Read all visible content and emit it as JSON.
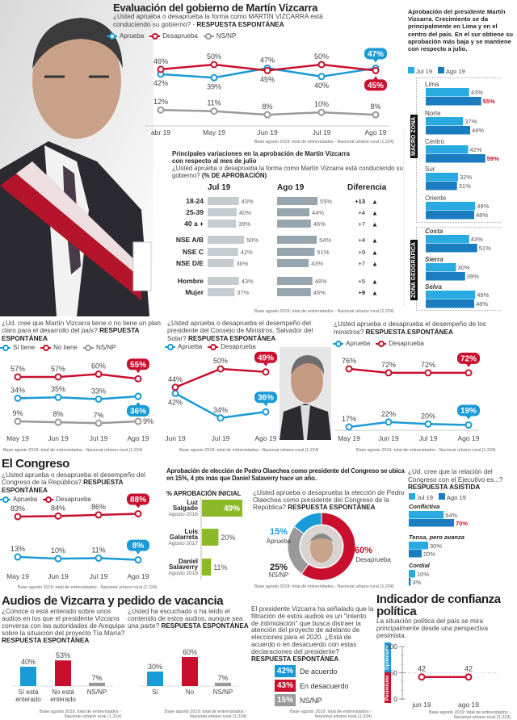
{
  "main": {
    "title": "Evaluación del gobierno de Martín Vizcarra",
    "question": "¿Usted aprueba o desaprueba la forma como MARTÍN VIZCARRA está conduciendo su gobierno? -",
    "question_bold": "RESPUESTA ESPONTÁNEA",
    "legend": [
      "Aprueba",
      "Desaprueba",
      "NS/NP"
    ],
    "base_note": "Base agosto 2019: total de entrevistados - Nacional urbano rural (1.224)"
  },
  "right_panel": {
    "text": "Aprobación del presidente Martín Vizcarra. Crecimiento se da principalmente en Lima y en el centro del país. En el sur obtiene su aprobación más baja y se mantiene con respecto a julio.",
    "legend": [
      "Jul 19",
      "Ago 19"
    ],
    "macro_label": "MACRO ZONA",
    "geo_label": "ZONA GEOGRÁFICA"
  },
  "variations": {
    "title": "Principales variaciones en la aprobación de Martín Vizcarra con respecto al mes de julio",
    "question": "¿Usted aprueba o desaprueba la forma como Martín Vizcarra está conduciendo su gobierno?",
    "question_bold": "(% DE APROBACIÓN)",
    "headers": [
      "Jul 19",
      "Ago 19",
      "Diferencia"
    ],
    "base_note": "Base agosto 2019: total de entrevistados - Nacional urbano rural (1.224)"
  },
  "plan": {
    "question": "¿Ud. cree que Martín Vizcarra tiene o no tiene un plan claro para el desarrollo del país?",
    "question_bold": "RESPUESTA ESPONTÁNEA",
    "legend": [
      "Sí tiene",
      "No tiene",
      "NS/NP"
    ],
    "base_note": "Base agosto 2019: total de entrevistados - Nacional urbano rural (1.224)"
  },
  "delsolar": {
    "question": "¿Usted aprueba o desaprueba el desempeño del presidente del Consejo de Ministros, Salvador del Solar?",
    "question_bold": "RESPUESTA ESPONTÁNEA",
    "legend": [
      "Aprueba",
      "Desaprueba"
    ],
    "base_note": "Base agosto 2019: total de entrevistados - Nacional urbano rural (1.224)"
  },
  "ministros": {
    "question": "¿Usted aprueba o desaprueba el desempeño de los ministros?",
    "question_bold": "RESPUESTA ESPONTÁNEA",
    "legend": [
      "Aprueba",
      "Desaprueba"
    ],
    "base_note": "Base agosto 2019: total de entrevistados - Nacional urbano rural (1.224)"
  },
  "congreso": {
    "title": "El Congreso",
    "question": "¿Usted aprueba o desaprueba el desempeño del Congreso de la República?",
    "question_bold": "RESPUESTA ESPONTÁNEA",
    "legend": [
      "Aprueba",
      "Desaprueba"
    ],
    "base_note": "Base agosto 2019: total de entrevistados - Nacional urbano rural (1.224)"
  },
  "olaechea": {
    "title": "Aprobación de elección de Pedro Olaechea como presidente del Congreso se ubica en 15%, 4 pts más que Daniel Salaverry hace un año.",
    "subtitle": "% APROBACIÓN INICIAL",
    "question": "¿Usted aprueba o desaprueba la elección de Pedro Olaechea como presidente del Congreso de la República?",
    "question_bold": "RESPUESTA ESPONTÁNEA",
    "base_note": "Base agosto 2019: total de entrevistados - Nacional urbano rural (1.224)"
  },
  "relacion": {
    "question": "¿Ud. cree que la relación del Congreso con el Ejecutivo es...?",
    "question_bold": "RESPUESTA ASISTIDA",
    "legend": [
      "Jul 19",
      "Ago 19"
    ]
  },
  "audios": {
    "title": "Audios de Vizcarra y pedido de vacancia",
    "q1": "¿Conoce o está enterado sobre unos audios en los que el presidente Vizcarra conversa con las autoridades de Arequipa sobre la situación del proyecto Tía María?",
    "q1_bold": "RESPUESTA ESPONTÁNEA",
    "q2": "¿Usted ha escuchado o ha leído el contenido de estos audios, aunque sea una parte?",
    "q2_bold": "RESPUESTA ESPONTÁNEA",
    "q3": "El presidente Vizcarra ha señalado que la filtración de estos audios es un \"intento de intimidación\" que busca distraer la atención del proyecto de adelanto de elecciones para el 2020. ¿Está de acuerdo o en desacuerdo con estas declaraciones del presidente?",
    "q3_bold": "RESPUESTA ESPONTÁNEA",
    "base_note_1": "Base agosto 2019: total de entrevistados - Nacional urbano rural (1.224)",
    "base_note_2": "Base agosto 2019: total de entrevistados - Nacional urbano rural (1.224)",
    "base_note_3": "Base agosto 2019: total de entrevistados - Nacional urbano rural (1.224)"
  },
  "confianza": {
    "title": "Indicador de confianza política",
    "text": "La situación política del país se mira principalmente desde una perspectiva pesimista.",
    "optimismo": "Optimismo",
    "pesimismo": "Pesimismo",
    "base_note": "Base agosto 2019: total de entrevistados - Nacional urbano rural (1.224)"
  },
  "colors": {
    "blue": "#1a9ad6",
    "red": "#c8102e",
    "grey": "#9a9a9a",
    "jul": "#29abe2",
    "ago": "#1a7cc1",
    "green": "#8cb92a"
  },
  "chart_data": [
    {
      "id": "gobierno",
      "type": "line",
      "categories": [
        "abr 19",
        "May 19",
        "Jun 19",
        "Jul 19",
        "Ago 19"
      ],
      "series": [
        {
          "name": "Aprueba",
          "color": "#1a9ad6",
          "values": [
            42,
            39,
            47,
            40,
            47
          ]
        },
        {
          "name": "Desaprueba",
          "color": "#c8102e",
          "values": [
            46,
            50,
            45,
            50,
            45
          ]
        },
        {
          "name": "NS/NP",
          "color": "#9a9a9a",
          "values": [
            12,
            11,
            8,
            10,
            8
          ]
        }
      ],
      "unit": "%"
    },
    {
      "id": "variaciones",
      "type": "bar",
      "orientation": "horizontal",
      "series_names": [
        "Jul 19",
        "Ago 19"
      ],
      "rows": [
        {
          "label": "18-24",
          "jul": 43,
          "ago": 55,
          "diff": "+13",
          "bold": true
        },
        {
          "label": "25-39",
          "jul": 40,
          "ago": 44,
          "diff": "+4"
        },
        {
          "label": "40 a +",
          "jul": 39,
          "ago": 46,
          "diff": "+7"
        },
        {
          "label": "NSE A/B",
          "jul": 50,
          "ago": 54,
          "diff": "+4"
        },
        {
          "label": "NSE C",
          "jul": 42,
          "ago": 51,
          "diff": "+9"
        },
        {
          "label": "NSE D/E",
          "jul": 36,
          "ago": 43,
          "diff": "+7"
        },
        {
          "label": "Hombre",
          "jul": 43,
          "ago": 48,
          "diff": "+5"
        },
        {
          "label": "Mujer",
          "jul": 37,
          "ago": 46,
          "diff": "+9",
          "bold": true
        }
      ],
      "unit": "%"
    },
    {
      "id": "zonas",
      "type": "bar",
      "orientation": "horizontal",
      "series_names": [
        "Jul 19",
        "Ago 19"
      ],
      "sections": [
        {
          "title": "MACRO ZONA",
          "groups": [
            {
              "label": "Lima",
              "values": [
                43,
                55
              ],
              "emphasis": [
                false,
                true
              ]
            },
            {
              "label": "Norte",
              "values": [
                37,
                44
              ]
            },
            {
              "label": "Centro",
              "values": [
                42,
                59
              ],
              "emphasis": [
                false,
                true
              ]
            },
            {
              "label": "Sur",
              "values": [
                32,
                31
              ]
            },
            {
              "label": "Oriente",
              "values": [
                49,
                48
              ]
            }
          ]
        },
        {
          "title": "ZONA GEOGRÁFICA",
          "groups": [
            {
              "label": "Costa",
              "values": [
                43,
                51
              ]
            },
            {
              "label": "Sierra",
              "values": [
                30,
                39
              ]
            },
            {
              "label": "Selva",
              "values": [
                49,
                48
              ]
            }
          ]
        }
      ],
      "unit": "%"
    },
    {
      "id": "plan",
      "type": "line",
      "categories": [
        "May 19",
        "Jun 19",
        "Jul 19",
        "Ago 19"
      ],
      "series": [
        {
          "name": "Sí tiene",
          "color": "#1a9ad6",
          "values": [
            34,
            35,
            33,
            36
          ]
        },
        {
          "name": "No tiene",
          "color": "#c8102e",
          "values": [
            57,
            57,
            60,
            55
          ]
        },
        {
          "name": "NS/NP",
          "color": "#9a9a9a",
          "values": [
            9,
            8,
            7,
            9
          ]
        }
      ],
      "unit": "%"
    },
    {
      "id": "delsolar",
      "type": "line",
      "categories": [
        "Jun 19",
        "Jul 19",
        "Ago 19"
      ],
      "series": [
        {
          "name": "Aprueba",
          "color": "#1a9ad6",
          "values": [
            42,
            34,
            36
          ]
        },
        {
          "name": "Desaprueba",
          "color": "#c8102e",
          "values": [
            44,
            50,
            49
          ]
        }
      ],
      "unit": "%"
    },
    {
      "id": "ministros",
      "type": "line",
      "categories": [
        "May 19",
        "Jun 19",
        "Jul 19",
        "Ago 19"
      ],
      "series": [
        {
          "name": "Aprueba",
          "color": "#1a9ad6",
          "values": [
            17,
            22,
            20,
            19
          ]
        },
        {
          "name": "Desaprueba",
          "color": "#c8102e",
          "values": [
            76,
            72,
            72,
            72
          ]
        }
      ],
      "unit": "%"
    },
    {
      "id": "congreso",
      "type": "line",
      "categories": [
        "May 19",
        "Jun 19",
        "Jul 19",
        "Ago 19"
      ],
      "series": [
        {
          "name": "Aprueba",
          "color": "#1a9ad6",
          "values": [
            13,
            10,
            11,
            8
          ]
        },
        {
          "name": "Desaprueba",
          "color": "#c8102e",
          "values": [
            83,
            84,
            86,
            88
          ]
        }
      ],
      "unit": "%"
    },
    {
      "id": "aprobacion_inicial",
      "type": "bar",
      "orientation": "horizontal",
      "rows": [
        {
          "name": "Luz Salgado",
          "date": "Agosto 2016",
          "value": 49
        },
        {
          "name": "Luis Galarreta",
          "date": "Agosto 2017",
          "value": 20
        },
        {
          "name": "Daniel Salaverry",
          "date": "Agosto 2018",
          "value": 11
        }
      ],
      "unit": "%"
    },
    {
      "id": "olaechea",
      "type": "pie",
      "donut": true,
      "slices": [
        {
          "label": "Desaprueba",
          "value": 60,
          "color": "#c8102e"
        },
        {
          "label": "NS/NP",
          "value": 25,
          "color": "#9a9a9a"
        },
        {
          "label": "Aprueba",
          "value": 15,
          "color": "#1a9ad6"
        }
      ],
      "unit": "%"
    },
    {
      "id": "relacion",
      "type": "bar",
      "orientation": "horizontal",
      "series_names": [
        "Jul 19",
        "Ago 19"
      ],
      "groups": [
        {
          "label": "Conflictiva",
          "values": [
            54,
            70
          ],
          "emphasis": [
            false,
            true
          ]
        },
        {
          "label": "Tensa, pero avanza",
          "values": [
            30,
            20
          ]
        },
        {
          "label": "Cordial",
          "values": [
            10,
            3
          ]
        }
      ],
      "unit": "%"
    },
    {
      "id": "audios_conoce",
      "type": "bar",
      "orientation": "vertical",
      "categories": [
        "Sí está enterado",
        "No está enterado",
        "NS/NP"
      ],
      "values": [
        40,
        53,
        7
      ],
      "colors": [
        "#1a9ad6",
        "#c8102e",
        "#9a9a9a"
      ],
      "unit": "%"
    },
    {
      "id": "audios_escucho",
      "type": "bar",
      "orientation": "vertical",
      "categories": [
        "Sí",
        "No",
        "NS/NP"
      ],
      "values": [
        30,
        60,
        7
      ],
      "colors": [
        "#1a9ad6",
        "#c8102e",
        "#9a9a9a"
      ],
      "unit": "%"
    },
    {
      "id": "declaraciones",
      "type": "table",
      "rows": [
        {
          "label": "De acuerdo",
          "value": "42%",
          "color": "#1a9ad6"
        },
        {
          "label": "En desacuerdo",
          "value": "43%",
          "color": "#c8102e"
        },
        {
          "label": "NS/NP",
          "value": "15%",
          "color": "#9a9a9a"
        }
      ]
    },
    {
      "id": "confianza",
      "type": "line",
      "categories": [
        "jun 19",
        "ago 19"
      ],
      "ylim": [
        0,
        100
      ],
      "yticks": [
        "100",
        "50",
        "0"
      ],
      "series": [
        {
          "color": "#c8102e",
          "values": [
            42,
            42
          ]
        }
      ]
    }
  ]
}
